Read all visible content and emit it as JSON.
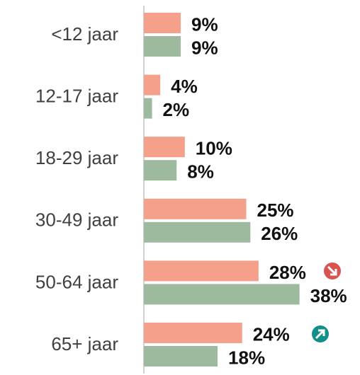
{
  "chart_data": {
    "type": "barh",
    "categories": [
      "<12 jaar",
      "12-17 jaar",
      "18-29 jaar",
      "30-49 jaar",
      "50-64 jaar",
      "65+ jaar"
    ],
    "series": [
      {
        "color": "#f4a08a",
        "values": [
          9,
          4,
          10,
          25,
          28,
          24
        ],
        "value_labels": [
          "9%",
          "4%",
          "10%",
          "25%",
          "28%",
          "24%"
        ]
      },
      {
        "color": "#9dba9f",
        "values": [
          9,
          2,
          8,
          26,
          38,
          18
        ],
        "value_labels": [
          "9%",
          "2%",
          "8%",
          "26%",
          "38%",
          "18%"
        ]
      }
    ],
    "xlim": [
      0,
      50
    ]
  }
}
